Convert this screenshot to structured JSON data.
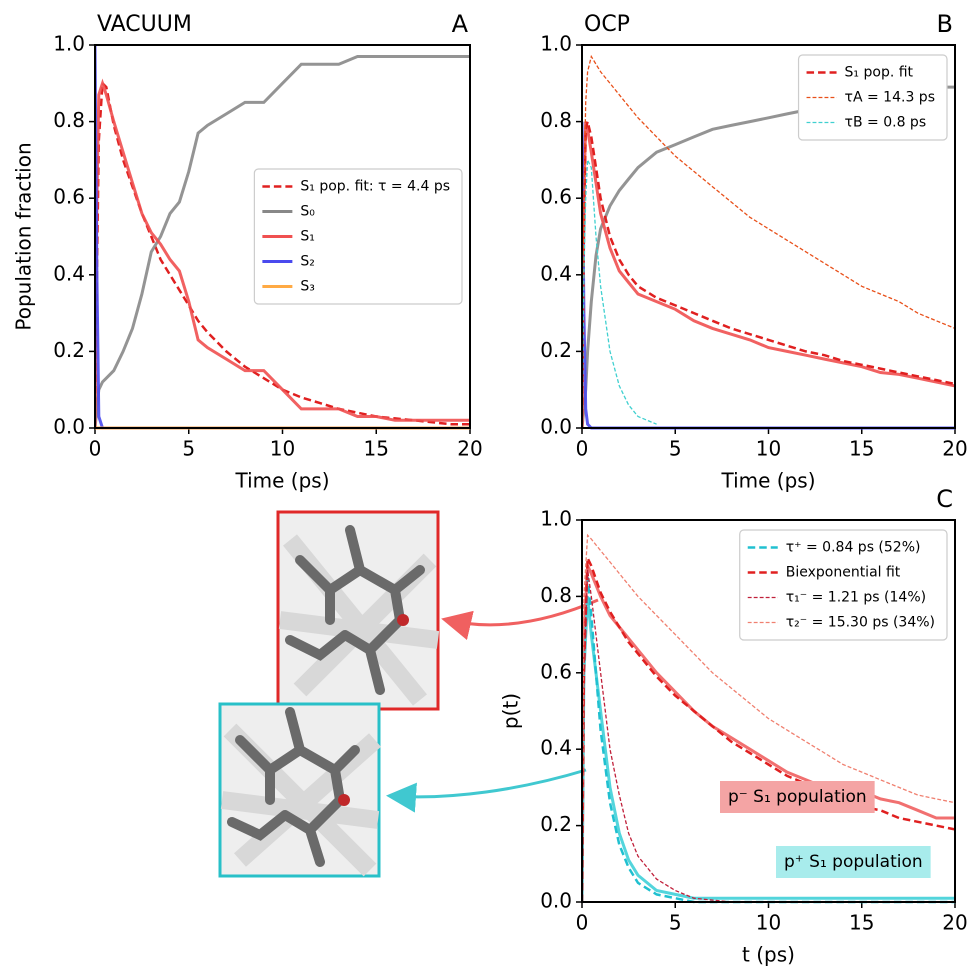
{
  "chart_data": [
    {
      "type": "line",
      "title": "VACUUM",
      "label": "A",
      "x_label": "Time (ps)",
      "y_label": "Population fraction",
      "x": [
        0,
        0.1,
        0.2,
        0.4,
        0.6,
        1,
        1.5,
        2,
        2.5,
        3,
        3.5,
        4,
        4.5,
        5,
        5.5,
        6,
        7,
        8,
        9,
        10,
        11,
        12,
        13,
        14,
        15,
        16,
        17,
        18,
        19,
        20
      ],
      "series": [
        {
          "name": "S₁ pop. fit: τ = 4.4 ps",
          "color": "#e02020",
          "style": "dashed",
          "linewidth": 2.5,
          "values": [
            0,
            0.4,
            0.75,
            0.9,
            0.89,
            0.79,
            0.7,
            0.63,
            0.56,
            0.5,
            0.44,
            0.4,
            0.36,
            0.32,
            0.28,
            0.25,
            0.2,
            0.16,
            0.13,
            0.1,
            0.08,
            0.065,
            0.05,
            0.04,
            0.03,
            0.025,
            0.02,
            0.015,
            0.01,
            0.01
          ]
        },
        {
          "name": "S₀",
          "color": "#888888",
          "style": "solid",
          "linewidth": 3,
          "values": [
            0,
            0.05,
            0.1,
            0.12,
            0.13,
            0.15,
            0.2,
            0.26,
            0.35,
            0.46,
            0.5,
            0.56,
            0.59,
            0.67,
            0.77,
            0.79,
            0.82,
            0.85,
            0.85,
            0.9,
            0.95,
            0.95,
            0.95,
            0.97,
            0.97,
            0.97,
            0.97,
            0.97,
            0.97,
            0.97
          ]
        },
        {
          "name": "S₁",
          "color": "#f05050",
          "style": "solid",
          "linewidth": 3,
          "values": [
            0,
            0.6,
            0.87,
            0.9,
            0.87,
            0.8,
            0.72,
            0.64,
            0.56,
            0.51,
            0.48,
            0.44,
            0.41,
            0.33,
            0.23,
            0.21,
            0.18,
            0.15,
            0.15,
            0.1,
            0.05,
            0.05,
            0.05,
            0.03,
            0.03,
            0.02,
            0.02,
            0.02,
            0.02,
            0.02
          ]
        },
        {
          "name": "S₂",
          "color": "#4a4aee",
          "style": "solid",
          "linewidth": 3,
          "values": [
            1,
            0.4,
            0.03,
            0,
            0,
            0,
            0,
            0,
            0,
            0,
            0,
            0,
            0,
            0,
            0,
            0,
            0,
            0,
            0,
            0,
            0,
            0,
            0,
            0,
            0,
            0,
            0,
            0,
            0,
            0
          ]
        },
        {
          "name": "S₃",
          "color": "#ffaa44",
          "style": "solid",
          "linewidth": 3,
          "values": [
            0,
            0,
            0,
            0,
            0,
            0,
            0,
            0,
            0,
            0,
            0,
            0,
            0,
            0,
            0,
            0,
            0,
            0,
            0,
            0,
            0,
            0,
            0,
            0,
            0,
            0,
            0,
            0,
            0,
            0
          ]
        }
      ],
      "legend": "center right",
      "xlim": [
        0,
        20
      ],
      "xticks": [
        0,
        5,
        10,
        15,
        20
      ],
      "ylim": [
        0,
        1
      ],
      "yticks": [
        {
          "value": 0,
          "label": "0.0"
        },
        {
          "value": 0.2,
          "label": "0.2"
        },
        {
          "value": 0.4,
          "label": "0.4"
        },
        {
          "value": 0.6,
          "label": "0.6"
        },
        {
          "value": 0.8,
          "label": "0.8"
        },
        {
          "value": 1,
          "label": "1.0"
        }
      ]
    },
    {
      "type": "line",
      "title": "OCP",
      "label": "B",
      "x_label": "Time (ps)",
      "x": [
        0,
        0.1,
        0.2,
        0.3,
        0.5,
        0.75,
        1,
        1.5,
        2,
        2.5,
        3,
        4,
        5,
        6,
        7,
        8,
        9,
        10,
        11,
        12,
        13,
        14,
        15,
        16,
        17,
        18,
        19,
        20
      ],
      "series": [
        {
          "color": "#888888",
          "style": "solid",
          "linewidth": 3,
          "values": [
            0,
            0.05,
            0.1,
            0.2,
            0.33,
            0.45,
            0.52,
            0.58,
            0.62,
            0.65,
            0.68,
            0.72,
            0.74,
            0.76,
            0.78,
            0.79,
            0.8,
            0.81,
            0.82,
            0.83,
            0.84,
            0.85,
            0.86,
            0.87,
            0.88,
            0.88,
            0.89,
            0.89
          ]
        },
        {
          "color": "#f05050",
          "style": "solid",
          "linewidth": 3,
          "values": [
            0,
            0.6,
            0.8,
            0.78,
            0.72,
            0.64,
            0.56,
            0.47,
            0.41,
            0.38,
            0.35,
            0.33,
            0.31,
            0.28,
            0.26,
            0.245,
            0.23,
            0.21,
            0.2,
            0.19,
            0.18,
            0.17,
            0.16,
            0.145,
            0.14,
            0.13,
            0.12,
            0.11
          ]
        },
        {
          "color": "#4a4aee",
          "style": "solid",
          "linewidth": 3,
          "values": [
            0.8,
            0.3,
            0.05,
            0.01,
            0,
            0,
            0,
            0,
            0,
            0,
            0,
            0,
            0,
            0,
            0,
            0,
            0,
            0,
            0,
            0,
            0,
            0,
            0,
            0,
            0,
            0,
            0,
            0
          ]
        },
        {
          "name": "S₁ pop. fit",
          "color": "#e02020",
          "style": "dashed",
          "linewidth": 2.5,
          "values": [
            0,
            0.5,
            0.78,
            0.8,
            0.76,
            0.68,
            0.6,
            0.5,
            0.44,
            0.4,
            0.37,
            0.34,
            0.32,
            0.3,
            0.28,
            0.26,
            0.245,
            0.23,
            0.215,
            0.2,
            0.19,
            0.175,
            0.165,
            0.155,
            0.145,
            0.135,
            0.125,
            0.115
          ]
        },
        {
          "name": "τA = 14.3 ps",
          "color": "#e8501a",
          "style": "dashed",
          "linewidth": 1.3,
          "values": [
            0,
            0.6,
            0.85,
            0.93,
            0.97,
            0.95,
            0.93,
            0.9,
            0.87,
            0.84,
            0.81,
            0.76,
            0.71,
            0.67,
            0.63,
            0.59,
            0.55,
            0.52,
            0.49,
            0.46,
            0.43,
            0.4,
            0.37,
            0.35,
            0.33,
            0.3,
            0.28,
            0.26
          ]
        },
        {
          "name": "τB = 0.8 ps",
          "color": "#40d0d0",
          "style": "dashed",
          "linewidth": 1.3,
          "values": [
            0,
            0.4,
            0.6,
            0.7,
            0.68,
            0.5,
            0.37,
            0.2,
            0.11,
            0.06,
            0.03,
            0.01,
            null,
            null,
            null,
            null,
            null,
            null,
            null,
            null,
            null,
            null,
            null,
            null,
            null,
            null,
            null,
            null
          ]
        }
      ],
      "legend": "upper right",
      "xlim": [
        0,
        20
      ],
      "xticks": [
        0,
        5,
        10,
        15,
        20
      ],
      "ylim": [
        0,
        1
      ],
      "yticks": [
        {
          "value": 0,
          "label": "0.0"
        },
        {
          "value": 0.2,
          "label": "0.2"
        },
        {
          "value": 0.4,
          "label": "0.4"
        },
        {
          "value": 0.6,
          "label": "0.6"
        },
        {
          "value": 0.8,
          "label": "0.8"
        },
        {
          "value": 1,
          "label": "1.0"
        }
      ]
    },
    {
      "type": "line",
      "label": "C",
      "x_label": "t (ps)",
      "y_label": "p(t)",
      "x": [
        0,
        0.1,
        0.3,
        0.5,
        1,
        1.5,
        2,
        2.5,
        3,
        4,
        5,
        6,
        7,
        8,
        9,
        10,
        11,
        12,
        13,
        14,
        15,
        16,
        17,
        18,
        19,
        20
      ],
      "series": [
        {
          "color": "#f06060",
          "style": "solid",
          "linewidth": 3,
          "values": [
            0,
            0.7,
            0.88,
            0.86,
            0.8,
            0.75,
            0.72,
            0.69,
            0.66,
            0.6,
            0.55,
            0.5,
            0.46,
            0.43,
            0.4,
            0.37,
            0.34,
            0.32,
            0.3,
            0.29,
            0.29,
            0.27,
            0.26,
            0.24,
            0.22,
            0.22
          ]
        },
        {
          "color": "#40d0d8",
          "style": "solid",
          "linewidth": 3,
          "values": [
            0,
            0.6,
            0.8,
            0.7,
            0.5,
            0.3,
            0.18,
            0.11,
            0.07,
            0.03,
            0.02,
            0.01,
            0.01,
            0.01,
            0.01,
            0.01,
            0.01,
            0.01,
            0.01,
            0.01,
            0.01,
            0.01,
            0.01,
            0.01,
            0.01,
            0.01
          ]
        },
        {
          "name": "τ⁺ = 0.84 ps (52%)",
          "color": "#20c0d0",
          "style": "dashed",
          "linewidth": 2.5,
          "values": [
            0,
            0.6,
            0.85,
            0.75,
            0.45,
            0.26,
            0.15,
            0.09,
            0.05,
            0.02,
            0.01,
            0,
            0,
            0,
            0,
            0,
            0,
            0,
            0,
            0,
            0,
            0,
            0,
            0,
            0,
            0
          ]
        },
        {
          "name": "Biexponential fit",
          "color": "#e02020",
          "style": "dashed",
          "linewidth": 2.5,
          "values": [
            0,
            0.6,
            0.9,
            0.88,
            0.81,
            0.76,
            0.72,
            0.68,
            0.65,
            0.59,
            0.54,
            0.5,
            0.46,
            0.42,
            0.39,
            0.36,
            0.33,
            0.31,
            0.29,
            0.27,
            0.25,
            0.24,
            0.22,
            0.21,
            0.2,
            0.19
          ]
        },
        {
          "name": "τ₁⁻ = 1.21 ps (14%)",
          "color": "#c0203a",
          "style": "dashed",
          "linewidth": 1.3,
          "values": [
            0,
            0.6,
            0.87,
            0.8,
            0.6,
            0.4,
            0.28,
            0.18,
            0.12,
            0.06,
            0.03,
            0.01,
            0.005,
            0,
            0,
            0,
            0,
            0,
            0,
            0,
            0,
            0,
            0,
            0,
            0,
            0
          ]
        },
        {
          "name": "τ₂⁻ = 15.30 ps (34%)",
          "color": "#f08070",
          "style": "dashed",
          "linewidth": 1.3,
          "values": [
            0,
            0.8,
            0.96,
            0.95,
            0.92,
            0.89,
            0.86,
            0.83,
            0.8,
            0.75,
            0.7,
            0.65,
            0.6,
            0.56,
            0.52,
            0.48,
            0.45,
            0.42,
            0.39,
            0.36,
            0.34,
            0.32,
            0.3,
            0.28,
            0.27,
            0.26
          ]
        }
      ],
      "annotations": [
        {
          "text": "p⁻ S₁ population",
          "color": "#f4a4a4"
        },
        {
          "text": "p⁺ S₁ population",
          "color": "#a8ecec"
        }
      ],
      "legend": "upper right",
      "xlim": [
        0,
        20
      ],
      "xticks": [
        0,
        5,
        10,
        15,
        20
      ],
      "ylim": [
        0,
        1
      ],
      "yticks": [
        {
          "value": 0,
          "label": "0.0"
        },
        {
          "value": 0.2,
          "label": "0.2"
        },
        {
          "value": 0.4,
          "label": "0.4"
        },
        {
          "value": 0.6,
          "label": "0.6"
        },
        {
          "value": 0.8,
          "label": "0.8"
        },
        {
          "value": 1,
          "label": "1.0"
        }
      ]
    }
  ]
}
